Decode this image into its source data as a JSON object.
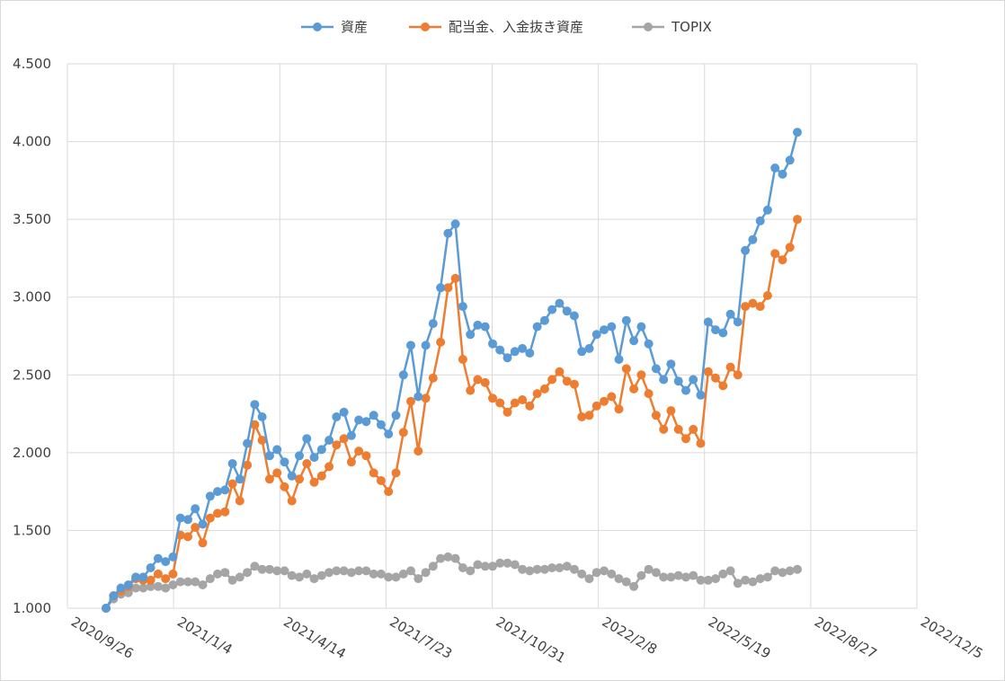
{
  "chart_data": {
    "type": "line",
    "title": "",
    "xlabel": "",
    "ylabel": "",
    "ylim": [
      1000,
      4500
    ],
    "y_ticks": [
      "1.000",
      "1.500",
      "2.000",
      "2.500",
      "3.000",
      "3.500",
      "4.000",
      "4.500"
    ],
    "x_ticks": [
      "2020/9/26",
      "2021/1/4",
      "2021/4/14",
      "2021/7/23",
      "2021/10/31",
      "2022/2/8",
      "2022/5/19",
      "2022/8/27",
      "2022/12/5"
    ],
    "grid": true,
    "legend_position": "top",
    "series": [
      {
        "name": "資産",
        "color": "#5b9bd5",
        "values": [
          1000,
          1080,
          1130,
          1150,
          1200,
          1200,
          1260,
          1320,
          1300,
          1330,
          1580,
          1570,
          1640,
          1540,
          1720,
          1750,
          1760,
          1930,
          1830,
          2060,
          2310,
          2230,
          1980,
          2020,
          1940,
          1850,
          1980,
          2090,
          1970,
          2020,
          2080,
          2230,
          2260,
          2110,
          2210,
          2200,
          2240,
          2180,
          2120,
          2240,
          2500,
          2690,
          2360,
          2690,
          2830,
          3060,
          3410,
          3470,
          2940,
          2760,
          2820,
          2810,
          2700,
          2660,
          2610,
          2650,
          2670,
          2640,
          2810,
          2850,
          2920,
          2960,
          2910,
          2880,
          2650,
          2670,
          2760,
          2790,
          2810,
          2600,
          2850,
          2720,
          2810,
          2700,
          2540,
          2470,
          2570,
          2460,
          2400,
          2470,
          2370,
          2840,
          2790,
          2770,
          2890,
          2840,
          3300,
          3370,
          3490,
          3560,
          3830,
          3790,
          3880,
          4060
        ]
      },
      {
        "name": "配当金、入金抜き資産",
        "color": "#ed7d31",
        "values": [
          1000,
          1080,
          1110,
          1140,
          1190,
          1180,
          1180,
          1220,
          1190,
          1220,
          1470,
          1460,
          1520,
          1420,
          1580,
          1610,
          1620,
          1800,
          1690,
          1920,
          2180,
          2080,
          1830,
          1870,
          1780,
          1690,
          1830,
          1930,
          1810,
          1850,
          1910,
          2050,
          2090,
          1940,
          2010,
          1980,
          1870,
          1820,
          1750,
          1870,
          2130,
          2330,
          2010,
          2350,
          2480,
          2710,
          3060,
          3120,
          2600,
          2400,
          2470,
          2450,
          2350,
          2320,
          2260,
          2320,
          2340,
          2300,
          2380,
          2410,
          2470,
          2520,
          2460,
          2440,
          2230,
          2240,
          2300,
          2330,
          2360,
          2280,
          2540,
          2410,
          2500,
          2380,
          2240,
          2150,
          2270,
          2150,
          2090,
          2150,
          2060,
          2520,
          2480,
          2430,
          2550,
          2500,
          2940,
          2960,
          2940,
          3010,
          3280,
          3240,
          3320,
          3500
        ]
      },
      {
        "name": "TOPIX",
        "color": "#a5a5a5",
        "values": [
          1000,
          1060,
          1090,
          1100,
          1130,
          1130,
          1140,
          1140,
          1130,
          1150,
          1170,
          1170,
          1170,
          1150,
          1190,
          1220,
          1230,
          1180,
          1200,
          1230,
          1270,
          1250,
          1250,
          1240,
          1240,
          1210,
          1200,
          1220,
          1190,
          1210,
          1230,
          1240,
          1240,
          1230,
          1240,
          1240,
          1220,
          1220,
          1200,
          1200,
          1220,
          1240,
          1190,
          1230,
          1270,
          1320,
          1330,
          1320,
          1260,
          1240,
          1280,
          1270,
          1270,
          1290,
          1290,
          1280,
          1250,
          1240,
          1250,
          1250,
          1260,
          1260,
          1270,
          1250,
          1220,
          1190,
          1230,
          1240,
          1220,
          1190,
          1170,
          1140,
          1210,
          1250,
          1230,
          1200,
          1200,
          1210,
          1200,
          1210,
          1180,
          1180,
          1190,
          1220,
          1240,
          1160,
          1180,
          1170,
          1190,
          1200,
          1240,
          1230,
          1240,
          1250
        ]
      }
    ]
  }
}
